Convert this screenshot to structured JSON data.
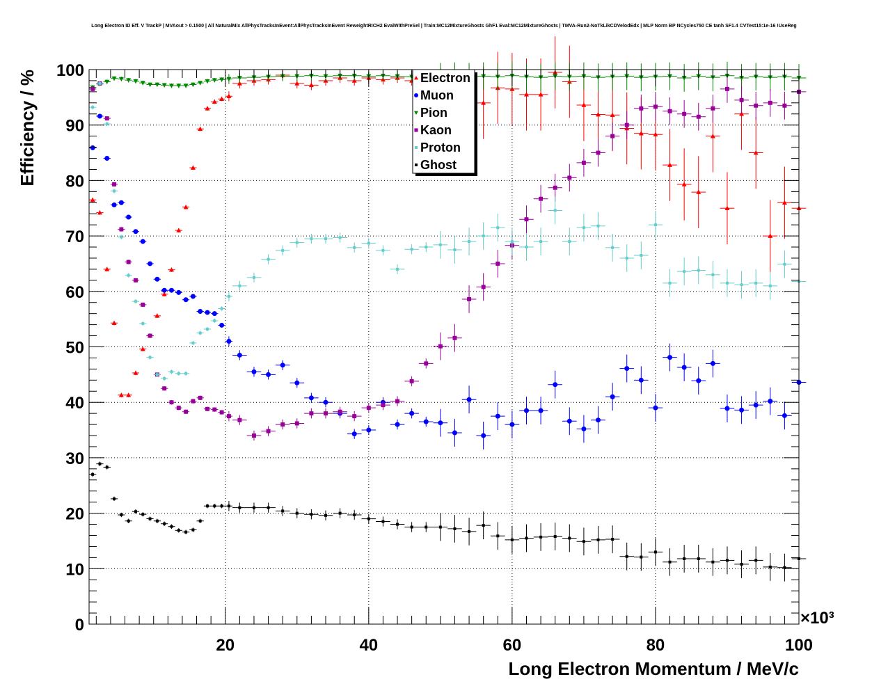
{
  "chart_data": {
    "type": "scatter",
    "title": "Long Electron ID Eff. V TrackP | MVAout > 0.1500 | All NaturalMix AllPhysTracksInEvent:AllPhysTracksInEvent ReweightRICH2 EvalWithPreSel | Train:MC12MixtureGhosts GhF1 Eval:MC12MixtureGhosts | TMVA-Run2-NoTkLikCDVelodEdx | MLP Norm BP NCycles750 CE tanh SF1.4 CVTest15:1e-16 !UseReg",
    "xlabel": "Long Electron Momentum / MeV/c",
    "ylabel": "Efficiency / %",
    "x_multiplier": "×10³",
    "xlim": [
      1,
      100
    ],
    "ylim": [
      0,
      100
    ],
    "x_ticks": [
      20,
      40,
      60,
      80,
      100
    ],
    "y_ticks": [
      0,
      10,
      20,
      30,
      40,
      50,
      60,
      70,
      80,
      90,
      100
    ],
    "grid": true,
    "legend_position": "top-center",
    "series": [
      {
        "name": "Electron",
        "color": "#ff0000",
        "marker": "triangle-up",
        "x": [
          1.5,
          2.5,
          3.5,
          4.5,
          5.5,
          6.5,
          7.5,
          8.5,
          9.5,
          10.5,
          11.5,
          12.5,
          13.5,
          14.5,
          15.5,
          16.5,
          17.5,
          18.5,
          19.5,
          20.5,
          22,
          24,
          26,
          28,
          30,
          32,
          34,
          36,
          38,
          40,
          42,
          44,
          46,
          48,
          50,
          52,
          54,
          56,
          58,
          60,
          62,
          64,
          66,
          68,
          70,
          72,
          74,
          76,
          78,
          80,
          82,
          84,
          86,
          88,
          90,
          92,
          94,
          96,
          98,
          100
        ],
        "y": [
          76.5,
          74.2,
          64,
          54.3,
          41.3,
          41.3,
          45.3,
          49.6,
          52,
          55.6,
          59.5,
          63.9,
          71,
          75.2,
          82.3,
          89.3,
          93,
          94.2,
          94.7,
          95.2,
          97.5,
          98,
          98.2,
          99,
          97.5,
          97.2,
          98,
          98.5,
          98,
          98.5,
          98.2,
          98.5,
          98,
          98.7,
          97.8,
          98.4,
          98.1,
          94,
          96.7,
          96.5,
          95.5,
          95.5,
          99.5,
          97.8,
          93.6,
          91.9,
          91.8,
          89.4,
          88.5,
          88.3,
          82.8,
          79.3,
          77.9,
          88,
          75,
          92,
          85,
          70,
          76,
          75
        ]
      },
      {
        "name": "Muon",
        "color": "#0000ff",
        "marker": "circle",
        "x": [
          1.5,
          2.5,
          3.5,
          4.5,
          5.5,
          6.5,
          7.5,
          8.5,
          9.5,
          10.5,
          11.5,
          12.5,
          13.5,
          14.5,
          15.5,
          16.5,
          17.5,
          18.5,
          19.5,
          20.5,
          22,
          24,
          26,
          28,
          30,
          32,
          34,
          36,
          38,
          40,
          42,
          44,
          46,
          48,
          50,
          52,
          54,
          56,
          58,
          60,
          62,
          64,
          66,
          68,
          70,
          72,
          74,
          76,
          78,
          80,
          82,
          84,
          86,
          88,
          90,
          92,
          94,
          96,
          98,
          100
        ],
        "y": [
          85.9,
          91.6,
          84,
          75.6,
          76,
          73.4,
          70.8,
          69,
          65,
          62.2,
          60.2,
          60.2,
          59.8,
          58.5,
          59.1,
          56.4,
          56.2,
          56,
          53.9,
          51,
          48.5,
          45.5,
          45,
          46.7,
          43.5,
          40.8,
          40,
          38,
          34.3,
          35,
          40,
          36,
          38,
          36.5,
          36.3,
          34.5,
          40.5,
          34,
          37.5,
          36,
          38.5,
          38.5,
          43.2,
          36.6,
          35.2,
          36.8,
          41,
          46.1,
          44,
          39,
          48.1,
          46.3,
          43.9,
          47,
          38.9,
          38.6,
          39.5,
          40.2,
          37.6,
          43.6
        ]
      },
      {
        "name": "Pion",
        "color": "#008800",
        "marker": "triangle-down",
        "x": [
          1.5,
          2.5,
          3.5,
          4.5,
          5.5,
          6.5,
          7.5,
          8.5,
          9.5,
          10.5,
          11.5,
          12.5,
          13.5,
          14.5,
          15.5,
          16.5,
          17.5,
          18.5,
          19.5,
          20.5,
          22,
          24,
          26,
          28,
          30,
          32,
          34,
          36,
          38,
          40,
          42,
          44,
          46,
          48,
          50,
          52,
          54,
          56,
          58,
          60,
          62,
          64,
          66,
          68,
          70,
          72,
          74,
          76,
          78,
          80,
          82,
          84,
          86,
          88,
          90,
          92,
          94,
          96,
          98,
          100
        ],
        "y": [
          96.8,
          97.4,
          97.8,
          98.4,
          98.3,
          98.1,
          97.9,
          97.6,
          97.3,
          97.3,
          97.2,
          97.1,
          97.1,
          97.1,
          97.3,
          97.6,
          97.9,
          98.1,
          98.2,
          98.3,
          98.5,
          98.6,
          98.7,
          98.8,
          98.8,
          98.9,
          98.8,
          98.9,
          98.9,
          98.8,
          98.9,
          98.8,
          98.7,
          98.8,
          98.7,
          98.8,
          98.7,
          98.8,
          98.7,
          98.9,
          98.7,
          98.6,
          98.8,
          98.7,
          98.8,
          98.6,
          98.7,
          98.8,
          98.6,
          98.7,
          98.8,
          98.5,
          98.8,
          98.6,
          98.9,
          98.5,
          98.7,
          98.6,
          98.7,
          98.5
        ]
      },
      {
        "name": "Kaon",
        "color": "#990099",
        "marker": "square",
        "x": [
          1.5,
          2.5,
          3.5,
          4.5,
          5.5,
          6.5,
          7.5,
          8.5,
          9.5,
          10.5,
          11.5,
          12.5,
          13.5,
          14.5,
          15.5,
          16.5,
          17.5,
          18.5,
          19.5,
          20.5,
          22,
          24,
          26,
          28,
          30,
          32,
          34,
          36,
          38,
          40,
          42,
          44,
          46,
          48,
          50,
          52,
          54,
          56,
          58,
          60,
          62,
          64,
          66,
          68,
          70,
          72,
          74,
          76,
          78,
          80,
          82,
          84,
          86,
          88,
          90,
          92,
          94,
          96,
          98,
          100
        ],
        "y": [
          96.5,
          97.5,
          91.2,
          79.3,
          71.2,
          65.3,
          62,
          57.6,
          52,
          45,
          42.5,
          40,
          39,
          38.3,
          40.2,
          40.8,
          38.8,
          38.7,
          38.2,
          37.5,
          36.8,
          34,
          34.8,
          36,
          36.2,
          38,
          38,
          38.3,
          37.5,
          39,
          39.5,
          40.2,
          43.8,
          47,
          50.1,
          51.6,
          58.6,
          60.8,
          65,
          68.3,
          73,
          76.7,
          78.7,
          80.5,
          83.2,
          85,
          88,
          90,
          93,
          93.3,
          92.5,
          92,
          91.5,
          93,
          96.5,
          94.5,
          93.5,
          94,
          93.5,
          96
        ]
      },
      {
        "name": "Proton",
        "color": "#66cccc",
        "marker": "plus",
        "x": [
          1.5,
          2.5,
          3.5,
          4.5,
          5.5,
          6.5,
          7.5,
          8.5,
          9.5,
          10.5,
          11.5,
          12.5,
          13.5,
          14.5,
          15.5,
          16.5,
          17.5,
          18.5,
          19.5,
          20.5,
          22,
          24,
          26,
          28,
          30,
          32,
          34,
          36,
          38,
          40,
          42,
          44,
          46,
          48,
          50,
          52,
          54,
          56,
          58,
          60,
          62,
          64,
          66,
          68,
          70,
          72,
          74,
          76,
          78,
          80,
          82,
          84,
          86,
          88,
          90,
          92,
          94,
          96,
          98,
          100
        ],
        "y": [
          93.2,
          97.5,
          90.2,
          78.1,
          69.8,
          62.9,
          58.2,
          54.2,
          48.1,
          45,
          44.3,
          45.5,
          45.2,
          45.2,
          50.7,
          52.5,
          53.2,
          54.7,
          56.9,
          59.1,
          61,
          62.5,
          65.8,
          67.4,
          68.8,
          69.5,
          69.5,
          69.7,
          67.9,
          68.7,
          67.4,
          64,
          67.6,
          68,
          68.4,
          67.5,
          69,
          70,
          71.5,
          69,
          68,
          69,
          74.6,
          69,
          71.5,
          71.8,
          67.9,
          66,
          66.5,
          72,
          61.5,
          63.6,
          63.8,
          63,
          61.5,
          61.2,
          61.5,
          61,
          64.9,
          61.8
        ]
      },
      {
        "name": "Ghost",
        "color": "#000000",
        "marker": "plus",
        "x": [
          1.5,
          2.5,
          3.5,
          4.5,
          5.5,
          6.5,
          7.5,
          8.5,
          9.5,
          10.5,
          11.5,
          12.5,
          13.5,
          14.5,
          15.5,
          16.5,
          17.5,
          18.5,
          19.5,
          20.5,
          22,
          24,
          26,
          28,
          30,
          32,
          34,
          36,
          38,
          40,
          42,
          44,
          46,
          48,
          50,
          52,
          54,
          56,
          58,
          60,
          62,
          64,
          66,
          68,
          70,
          72,
          74,
          76,
          78,
          80,
          82,
          84,
          86,
          88,
          90,
          92,
          94,
          96,
          98,
          100
        ],
        "y": [
          27,
          28.9,
          28.3,
          22.6,
          19.7,
          18.6,
          20.3,
          19.8,
          19,
          18.6,
          18.1,
          17.6,
          16.9,
          16.6,
          17,
          18.6,
          21.3,
          21.3,
          21.3,
          21.3,
          21,
          21,
          21,
          20.4,
          20,
          19.8,
          19.6,
          20,
          19.7,
          19,
          18.5,
          18,
          17.5,
          17.5,
          17.5,
          17.2,
          16.7,
          17.8,
          15.9,
          15.2,
          15.5,
          15.7,
          15.8,
          15.5,
          14.9,
          15.2,
          15.3,
          12.2,
          12.1,
          13,
          11.2,
          11.8,
          11.8,
          11.2,
          11.5,
          10.8,
          11.5,
          10.3,
          10.2,
          11.8
        ]
      }
    ]
  }
}
